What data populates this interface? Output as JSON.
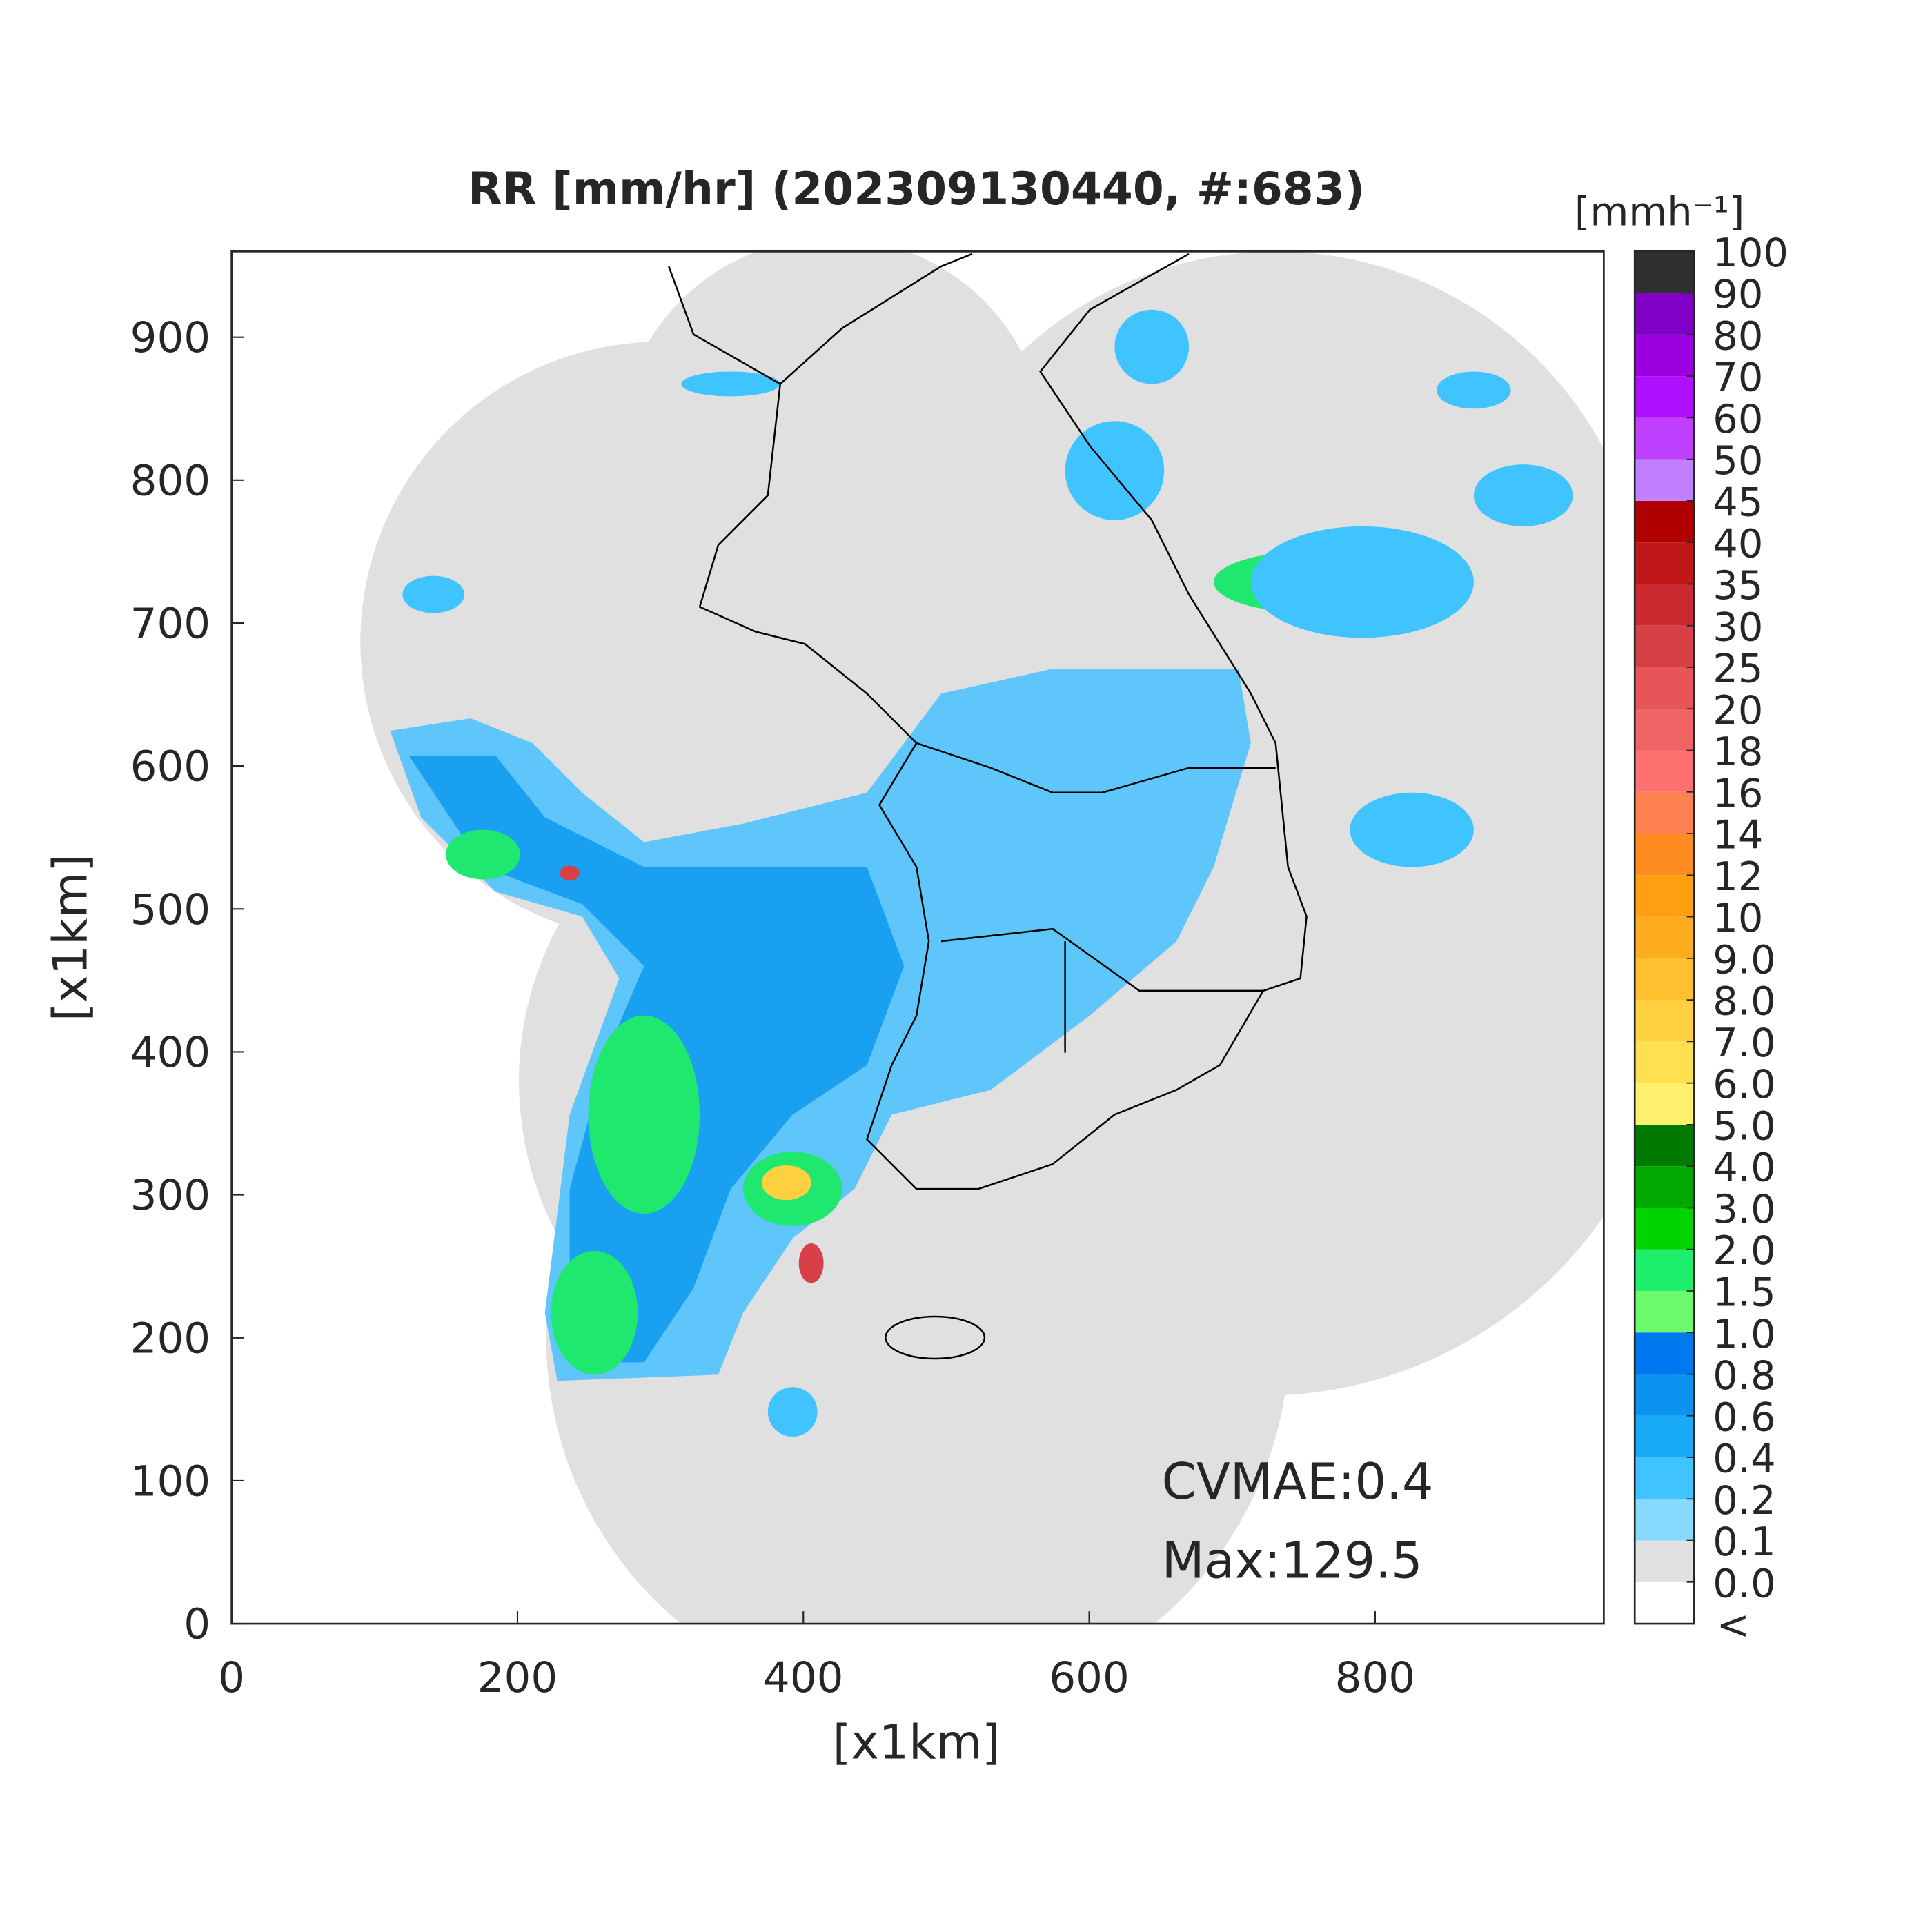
{
  "chart_data": {
    "type": "map",
    "title": "RR [mm/hr] (202309130440, #:683)",
    "xlabel": "[x1km]",
    "ylabel": "[x1km]",
    "xlim": [
      0,
      960
    ],
    "ylim": [
      0,
      960
    ],
    "xticks": [
      0,
      200,
      400,
      600,
      800
    ],
    "yticks": [
      0,
      100,
      200,
      300,
      400,
      500,
      600,
      700,
      800,
      900
    ],
    "annotations": [
      "CVMAE:0.4",
      "Max:129.5"
    ],
    "colorbar": {
      "title": "[mmh⁻¹]",
      "below_label": "<",
      "levels": [
        {
          "value": 0,
          "label": "0.0"
        },
        0.1,
        0.2,
        0.4,
        0.6,
        0.8,
        {
          "value": 1,
          "label": "1.0"
        },
        1.5,
        {
          "value": 2,
          "label": "2.0"
        },
        {
          "value": 3,
          "label": "3.0"
        },
        {
          "value": 4,
          "label": "4.0"
        },
        {
          "value": 5,
          "label": "5.0"
        },
        {
          "value": 6,
          "label": "6.0"
        },
        {
          "value": 7,
          "label": "7.0"
        },
        {
          "value": 8,
          "label": "8.0"
        },
        {
          "value": 9,
          "label": "9.0"
        },
        10,
        12,
        14,
        16,
        18,
        20,
        25,
        30,
        35,
        40,
        45,
        50,
        60,
        70,
        80,
        90,
        100
      ],
      "colors": [
        "#ffffff",
        "#e0e0e0",
        "#87d9ff",
        "#40c4ff",
        "#1aabf7",
        "#0a93f0",
        "#0078f0",
        "#6cf96c",
        "#1ef06e",
        "#00d400",
        "#00a800",
        "#007a00",
        "#fff06e",
        "#ffe150",
        "#ffd040",
        "#ffc030",
        "#ffad20",
        "#ffa010",
        "#ff8c20",
        "#ff8050",
        "#ff7070",
        "#f06466",
        "#e85558",
        "#d84048",
        "#cc2a30",
        "#c01818",
        "#b00000",
        "#c080ff",
        "#c040ff",
        "#b010ff",
        "#9a00e0",
        "#8000c8",
        "#303030"
      ]
    }
  }
}
